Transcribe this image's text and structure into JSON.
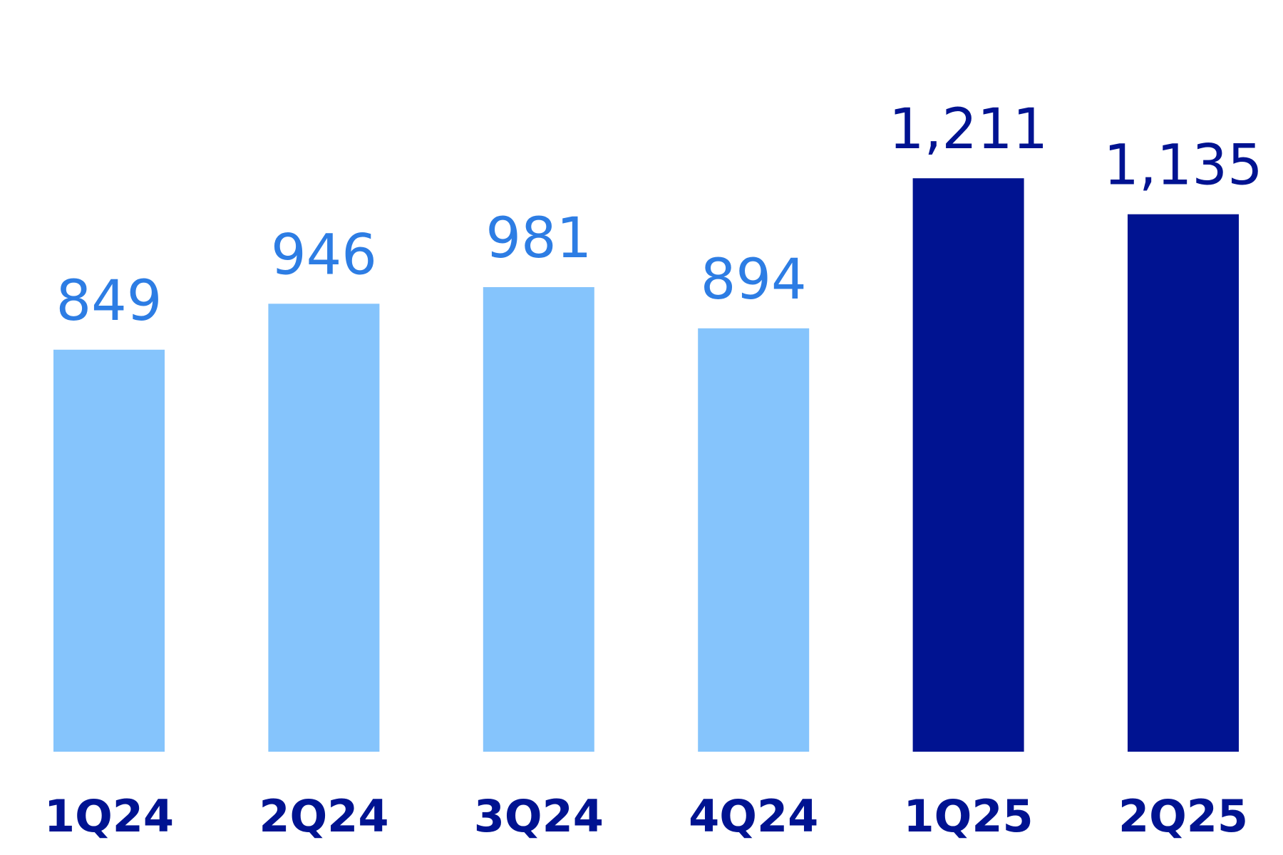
{
  "chart_data": {
    "type": "bar",
    "categories": [
      "1Q24",
      "2Q24",
      "3Q24",
      "4Q24",
      "1Q25",
      "2Q25"
    ],
    "values": [
      849,
      946,
      981,
      894,
      1211,
      1135
    ],
    "value_labels": [
      "849",
      "946",
      "981",
      "894",
      "1,211",
      "1,135"
    ],
    "bar_groups": [
      "prior",
      "prior",
      "prior",
      "prior",
      "current",
      "current"
    ],
    "ylim": [
      0,
      1400
    ],
    "grid": false,
    "title": "",
    "xlabel": "",
    "ylabel": ""
  },
  "colors": {
    "prior_bar": "#85C4FC",
    "prior_label": "#2D7DE4",
    "current_bar": "#001391",
    "current_label": "#001391",
    "category_label": "#001391"
  }
}
